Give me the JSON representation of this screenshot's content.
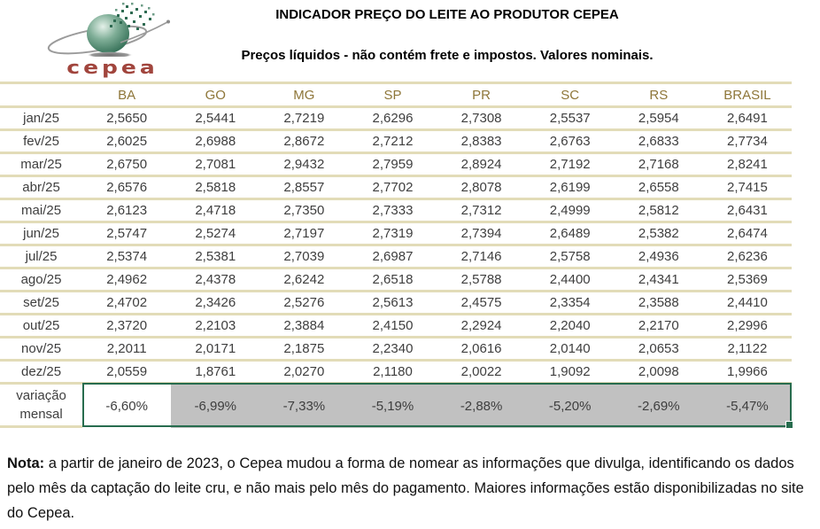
{
  "header": {
    "title": "INDICADOR PREÇO DO LEITE AO PRODUTOR CEPEA",
    "subtitle": "Preços líquidos - não contém frete e impostos. Valores nominais.",
    "logo_text": "cepea"
  },
  "table": {
    "columns": [
      "BA",
      "GO",
      "MG",
      "SP",
      "PR",
      "SC",
      "RS",
      "BRASIL"
    ],
    "rows": [
      {
        "label": "jan/25",
        "values": [
          "2,5650",
          "2,5441",
          "2,7219",
          "2,6296",
          "2,7308",
          "2,5537",
          "2,5954",
          "2,6491"
        ]
      },
      {
        "label": "fev/25",
        "values": [
          "2,6025",
          "2,6988",
          "2,8672",
          "2,7212",
          "2,8383",
          "2,6763",
          "2,6833",
          "2,7734"
        ]
      },
      {
        "label": "mar/25",
        "values": [
          "2,6750",
          "2,7081",
          "2,9432",
          "2,7959",
          "2,8924",
          "2,7192",
          "2,7168",
          "2,8241"
        ]
      },
      {
        "label": "abr/25",
        "values": [
          "2,6576",
          "2,5818",
          "2,8557",
          "2,7702",
          "2,8078",
          "2,6199",
          "2,6558",
          "2,7415"
        ]
      },
      {
        "label": "mai/25",
        "values": [
          "2,6123",
          "2,4718",
          "2,7350",
          "2,7333",
          "2,7312",
          "2,4999",
          "2,5812",
          "2,6431"
        ]
      },
      {
        "label": "jun/25",
        "values": [
          "2,5747",
          "2,5274",
          "2,7197",
          "2,7319",
          "2,7394",
          "2,6489",
          "2,5382",
          "2,6474"
        ]
      },
      {
        "label": "jul/25",
        "values": [
          "2,5374",
          "2,5381",
          "2,7039",
          "2,6987",
          "2,7146",
          "2,5758",
          "2,4936",
          "2,6236"
        ]
      },
      {
        "label": "ago/25",
        "values": [
          "2,4962",
          "2,4378",
          "2,6242",
          "2,6518",
          "2,5788",
          "2,4400",
          "2,4341",
          "2,5369"
        ]
      },
      {
        "label": "set/25",
        "values": [
          "2,4702",
          "2,3426",
          "2,5276",
          "2,5613",
          "2,4575",
          "2,3354",
          "2,3588",
          "2,4410"
        ]
      },
      {
        "label": "out/25",
        "values": [
          "2,3720",
          "2,2103",
          "2,3884",
          "2,4150",
          "2,2924",
          "2,2040",
          "2,2170",
          "2,2996"
        ]
      },
      {
        "label": "nov/25",
        "values": [
          "2,2011",
          "2,0171",
          "2,1875",
          "2,2340",
          "2,0616",
          "2,0140",
          "2,0653",
          "2,1122"
        ]
      },
      {
        "label": "dez/25",
        "values": [
          "2,0559",
          "1,8761",
          "2,0270",
          "2,1180",
          "2,0022",
          "1,9092",
          "2,0098",
          "1,9966"
        ]
      }
    ],
    "variation": {
      "label_line1": "variação",
      "label_line2": "mensal",
      "values": [
        "-6,60%",
        "-6,99%",
        "-7,33%",
        "-5,19%",
        "-2,88%",
        "-5,20%",
        "-2,69%",
        "-5,47%"
      ]
    }
  },
  "note": {
    "bold": "Nota:",
    "text": " a partir de janeiro de 2023, o Cepea mudou a forma de nomear as informações que divulga, identificando os dados pelo mês da captação do leite cru, e não mais pelo mês do pagamento. Maiores informações estão disponibilizadas no site do Cepea."
  },
  "colors": {
    "row_separator_tan": "#e2dcb8",
    "column_header_olive": "#8e7639",
    "selection_green": "#276c4e",
    "selection_gray": "#c1c1c1",
    "logo_green": "#2f6b52",
    "logo_maroon": "#a1453d",
    "data_text": "#3e3e3e"
  }
}
